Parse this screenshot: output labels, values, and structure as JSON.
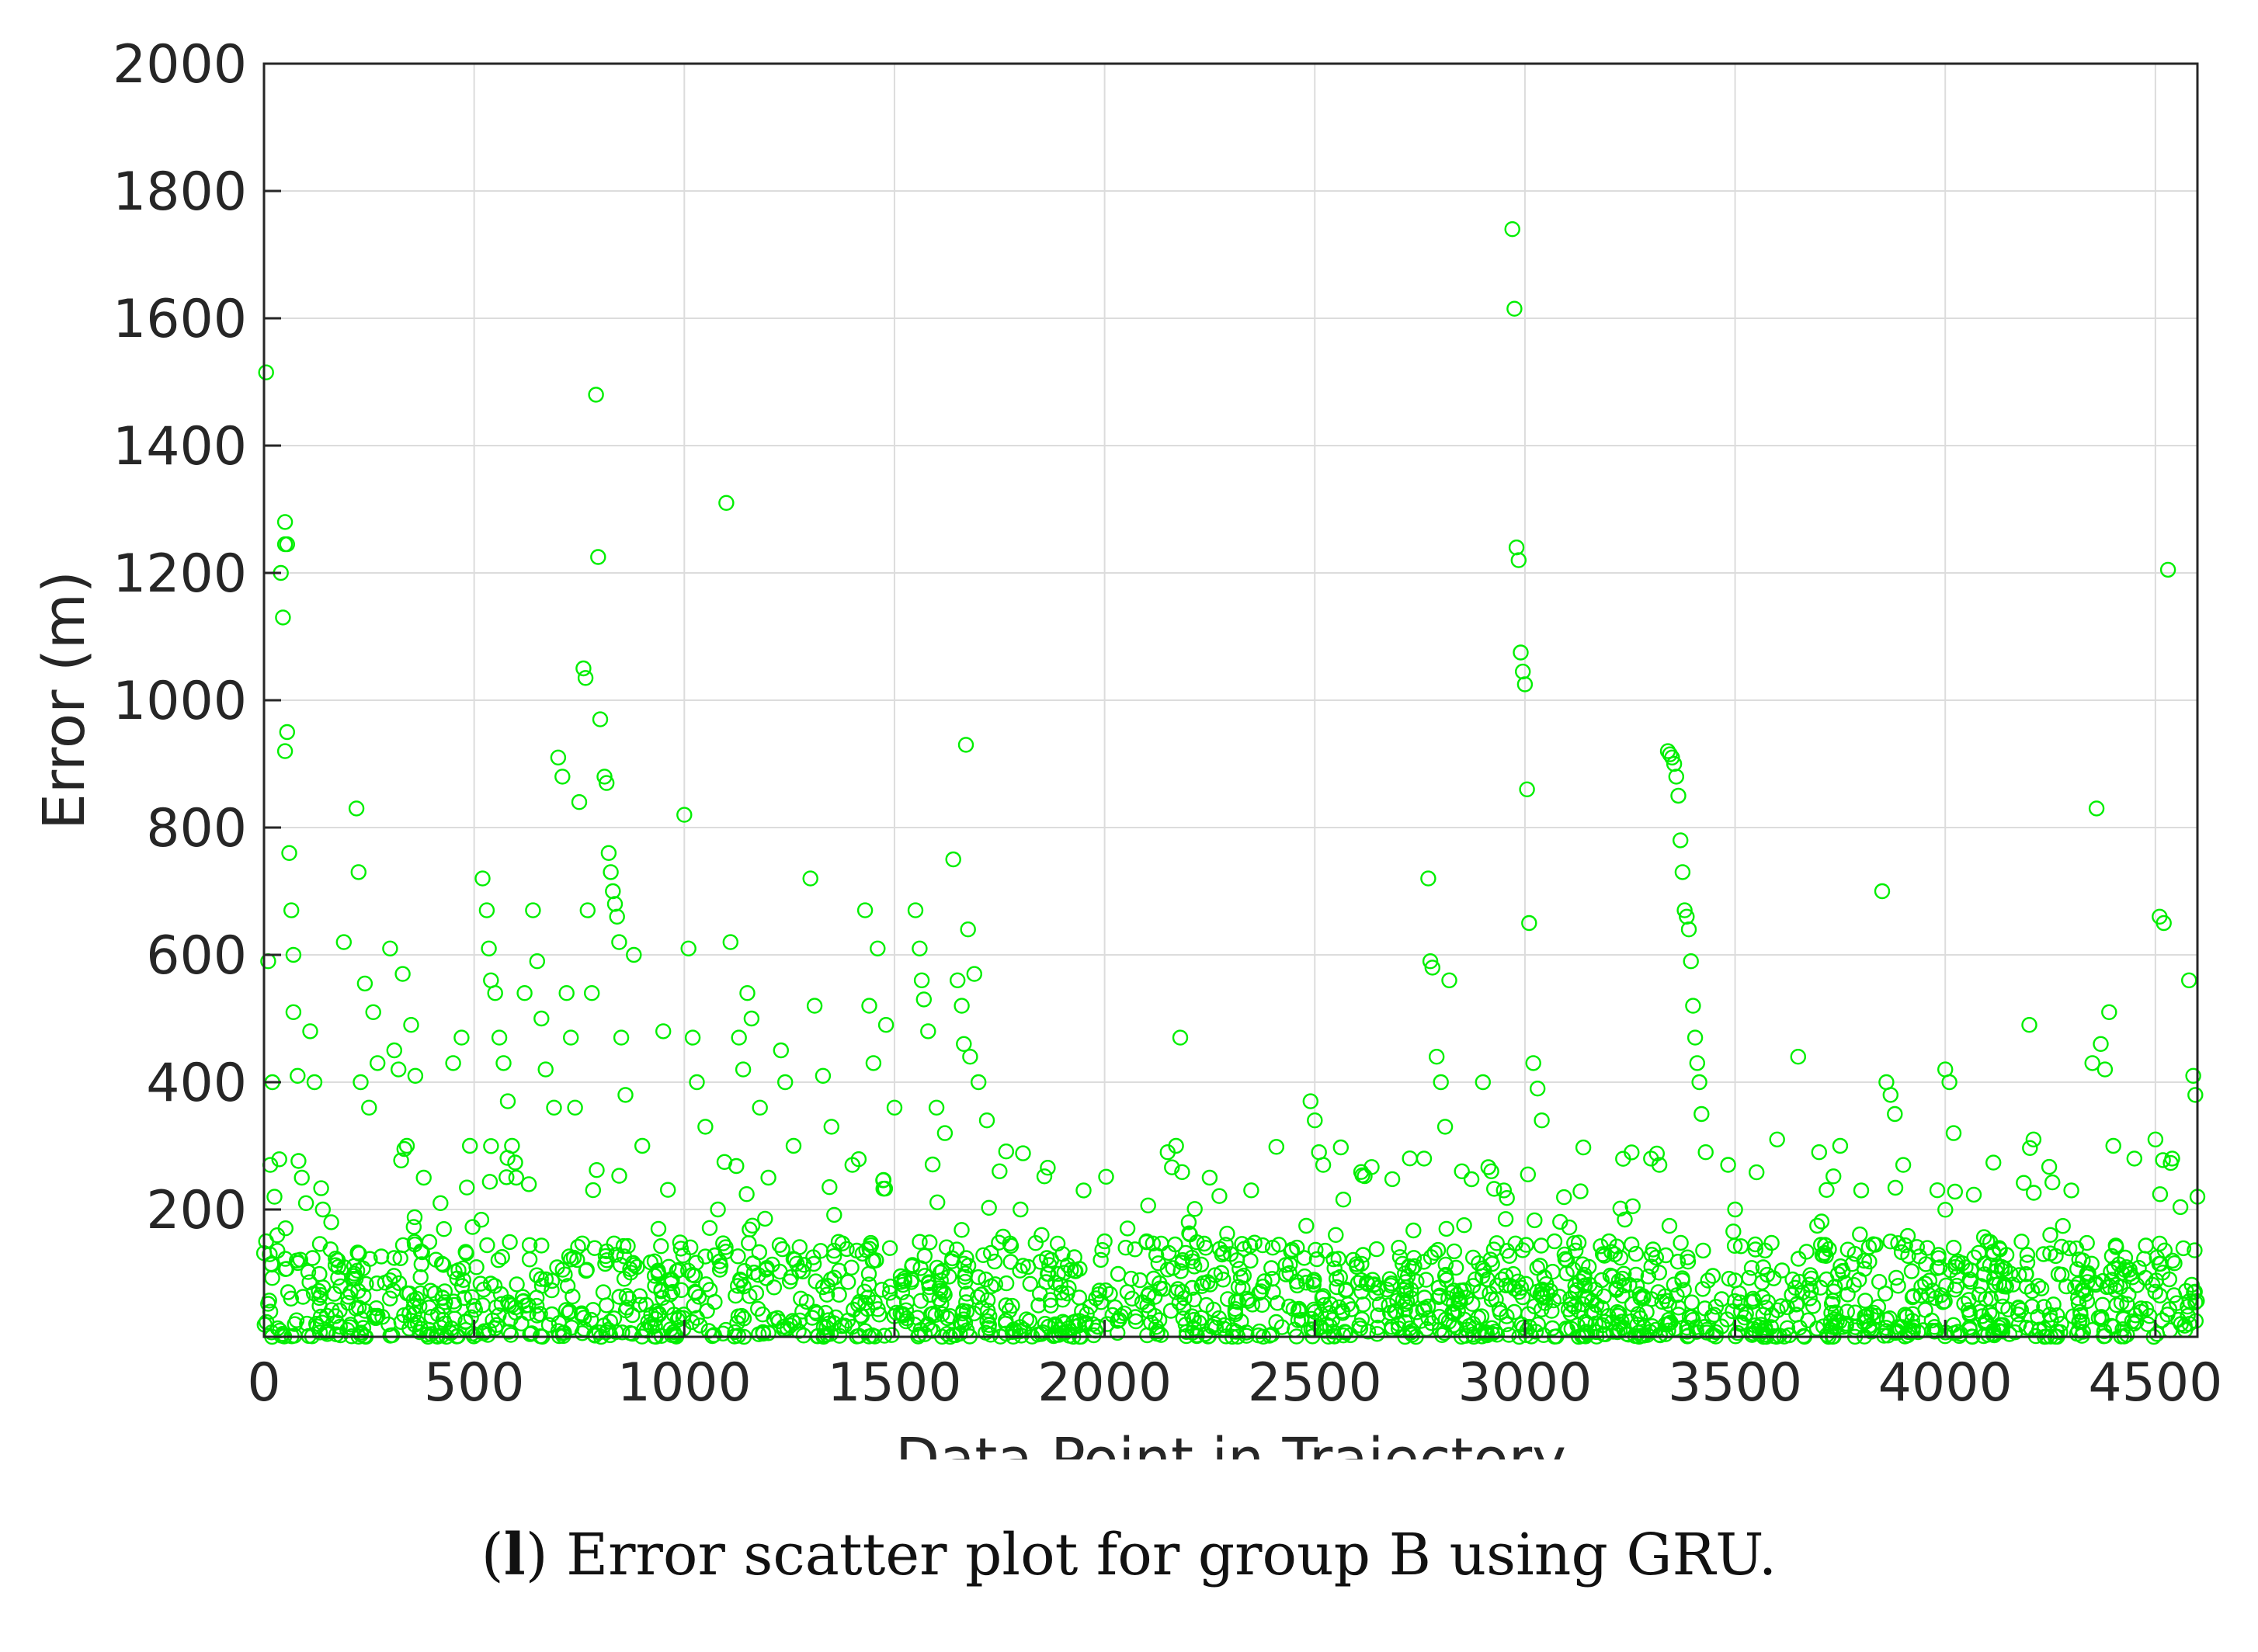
{
  "caption": {
    "label": "l",
    "text": "Error scatter plot for group B using GRU."
  },
  "chart_data": {
    "type": "scatter",
    "title": "",
    "xlabel": "Data Point in Trajectory",
    "ylabel": "Error (m)",
    "xlim": [
      0,
      4600
    ],
    "ylim": [
      0,
      2000
    ],
    "xticks": [
      0,
      500,
      1000,
      1500,
      2000,
      2500,
      3000,
      3500,
      4000,
      4500
    ],
    "yticks": [
      200,
      400,
      600,
      800,
      1000,
      1200,
      1400,
      1600,
      1800,
      2000
    ],
    "grid": true,
    "marker": "open-circle",
    "color": "#00ee00",
    "points": [
      [
        5,
        1515
      ],
      [
        50,
        1280
      ],
      [
        50,
        1245
      ],
      [
        55,
        1245
      ],
      [
        40,
        1200
      ],
      [
        45,
        1130
      ],
      [
        55,
        950
      ],
      [
        50,
        920
      ],
      [
        60,
        760
      ],
      [
        65,
        670
      ],
      [
        70,
        600
      ],
      [
        10,
        590
      ],
      [
        70,
        510
      ],
      [
        20,
        400
      ],
      [
        80,
        410
      ],
      [
        15,
        270
      ],
      [
        25,
        220
      ],
      [
        90,
        250
      ],
      [
        100,
        210
      ],
      [
        5,
        150
      ],
      [
        110,
        480
      ],
      [
        120,
        400
      ],
      [
        140,
        200
      ],
      [
        160,
        180
      ],
      [
        190,
        620
      ],
      [
        220,
        830
      ],
      [
        225,
        730
      ],
      [
        240,
        555
      ],
      [
        260,
        510
      ],
      [
        270,
        430
      ],
      [
        230,
        400
      ],
      [
        250,
        360
      ],
      [
        300,
        610
      ],
      [
        310,
        450
      ],
      [
        320,
        420
      ],
      [
        330,
        570
      ],
      [
        350,
        490
      ],
      [
        360,
        410
      ],
      [
        340,
        300
      ],
      [
        380,
        250
      ],
      [
        420,
        210
      ],
      [
        450,
        430
      ],
      [
        470,
        470
      ],
      [
        490,
        300
      ],
      [
        520,
        720
      ],
      [
        530,
        670
      ],
      [
        535,
        610
      ],
      [
        540,
        560
      ],
      [
        550,
        540
      ],
      [
        560,
        470
      ],
      [
        570,
        430
      ],
      [
        580,
        370
      ],
      [
        590,
        300
      ],
      [
        600,
        250
      ],
      [
        620,
        540
      ],
      [
        640,
        670
      ],
      [
        650,
        590
      ],
      [
        660,
        500
      ],
      [
        670,
        420
      ],
      [
        690,
        360
      ],
      [
        700,
        910
      ],
      [
        710,
        880
      ],
      [
        720,
        540
      ],
      [
        730,
        470
      ],
      [
        740,
        360
      ],
      [
        750,
        840
      ],
      [
        760,
        1050
      ],
      [
        765,
        1035
      ],
      [
        770,
        670
      ],
      [
        780,
        540
      ],
      [
        790,
        1480
      ],
      [
        795,
        1225
      ],
      [
        800,
        970
      ],
      [
        810,
        880
      ],
      [
        815,
        870
      ],
      [
        820,
        760
      ],
      [
        825,
        730
      ],
      [
        830,
        700
      ],
      [
        835,
        680
      ],
      [
        840,
        660
      ],
      [
        845,
        620
      ],
      [
        850,
        470
      ],
      [
        860,
        380
      ],
      [
        880,
        600
      ],
      [
        900,
        300
      ],
      [
        950,
        480
      ],
      [
        1000,
        820
      ],
      [
        1010,
        610
      ],
      [
        1020,
        470
      ],
      [
        1030,
        400
      ],
      [
        1050,
        330
      ],
      [
        1080,
        200
      ],
      [
        1100,
        1310
      ],
      [
        1110,
        620
      ],
      [
        1130,
        470
      ],
      [
        1140,
        420
      ],
      [
        1150,
        540
      ],
      [
        1160,
        500
      ],
      [
        1180,
        360
      ],
      [
        1200,
        250
      ],
      [
        1230,
        450
      ],
      [
        1240,
        400
      ],
      [
        1260,
        300
      ],
      [
        1300,
        720
      ],
      [
        1310,
        520
      ],
      [
        1330,
        410
      ],
      [
        1350,
        330
      ],
      [
        1400,
        270
      ],
      [
        1430,
        670
      ],
      [
        1440,
        520
      ],
      [
        1450,
        430
      ],
      [
        1460,
        610
      ],
      [
        1480,
        490
      ],
      [
        1500,
        360
      ],
      [
        1550,
        670
      ],
      [
        1560,
        610
      ],
      [
        1565,
        560
      ],
      [
        1570,
        530
      ],
      [
        1580,
        480
      ],
      [
        1600,
        360
      ],
      [
        1620,
        320
      ],
      [
        1640,
        750
      ],
      [
        1650,
        560
      ],
      [
        1660,
        520
      ],
      [
        1665,
        460
      ],
      [
        1670,
        930
      ],
      [
        1675,
        640
      ],
      [
        1680,
        440
      ],
      [
        1690,
        570
      ],
      [
        1700,
        400
      ],
      [
        1720,
        340
      ],
      [
        1750,
        260
      ],
      [
        1800,
        200
      ],
      [
        1850,
        160
      ],
      [
        1900,
        130
      ],
      [
        1950,
        230
      ],
      [
        2000,
        150
      ],
      [
        2050,
        140
      ],
      [
        2100,
        150
      ],
      [
        2150,
        290
      ],
      [
        2170,
        300
      ],
      [
        2180,
        470
      ],
      [
        2200,
        180
      ],
      [
        2250,
        250
      ],
      [
        2300,
        130
      ],
      [
        2400,
        140
      ],
      [
        2490,
        370
      ],
      [
        2500,
        340
      ],
      [
        2510,
        290
      ],
      [
        2520,
        270
      ],
      [
        2550,
        160
      ],
      [
        2600,
        110
      ],
      [
        2700,
        140
      ],
      [
        2760,
        280
      ],
      [
        2770,
        720
      ],
      [
        2775,
        590
      ],
      [
        2780,
        580
      ],
      [
        2790,
        440
      ],
      [
        2800,
        400
      ],
      [
        2810,
        330
      ],
      [
        2820,
        560
      ],
      [
        2850,
        260
      ],
      [
        2900,
        400
      ],
      [
        2920,
        260
      ],
      [
        2950,
        230
      ],
      [
        2970,
        1740
      ],
      [
        2975,
        1615
      ],
      [
        2980,
        1240
      ],
      [
        2985,
        1220
      ],
      [
        2990,
        1075
      ],
      [
        2995,
        1045
      ],
      [
        3000,
        1025
      ],
      [
        3005,
        860
      ],
      [
        3010,
        650
      ],
      [
        3020,
        430
      ],
      [
        3030,
        390
      ],
      [
        3040,
        340
      ],
      [
        3100,
        120
      ],
      [
        3200,
        150
      ],
      [
        3300,
        280
      ],
      [
        3320,
        270
      ],
      [
        3340,
        920
      ],
      [
        3345,
        915
      ],
      [
        3350,
        910
      ],
      [
        3355,
        900
      ],
      [
        3360,
        880
      ],
      [
        3365,
        850
      ],
      [
        3370,
        780
      ],
      [
        3375,
        730
      ],
      [
        3380,
        670
      ],
      [
        3385,
        660
      ],
      [
        3390,
        640
      ],
      [
        3395,
        590
      ],
      [
        3400,
        520
      ],
      [
        3405,
        470
      ],
      [
        3410,
        430
      ],
      [
        3415,
        400
      ],
      [
        3420,
        350
      ],
      [
        3430,
        290
      ],
      [
        3500,
        200
      ],
      [
        3600,
        310
      ],
      [
        3650,
        440
      ],
      [
        3700,
        290
      ],
      [
        3750,
        300
      ],
      [
        3800,
        230
      ],
      [
        3850,
        700
      ],
      [
        3860,
        400
      ],
      [
        3870,
        380
      ],
      [
        3880,
        350
      ],
      [
        3900,
        270
      ],
      [
        4000,
        420
      ],
      [
        4010,
        400
      ],
      [
        4020,
        320
      ],
      [
        4100,
        150
      ],
      [
        4200,
        490
      ],
      [
        4210,
        310
      ],
      [
        4250,
        160
      ],
      [
        4300,
        230
      ],
      [
        4350,
        430
      ],
      [
        4360,
        830
      ],
      [
        4370,
        460
      ],
      [
        4380,
        420
      ],
      [
        4390,
        510
      ],
      [
        4400,
        300
      ],
      [
        4450,
        280
      ],
      [
        4500,
        310
      ],
      [
        4510,
        660
      ],
      [
        4520,
        650
      ],
      [
        4530,
        1205
      ],
      [
        4540,
        280
      ],
      [
        4580,
        560
      ],
      [
        4590,
        410
      ],
      [
        4595,
        380
      ],
      [
        4600,
        220
      ]
    ],
    "dense_band": {
      "description": "many points clustered near the x-axis",
      "y_range": [
        0,
        150
      ]
    }
  }
}
